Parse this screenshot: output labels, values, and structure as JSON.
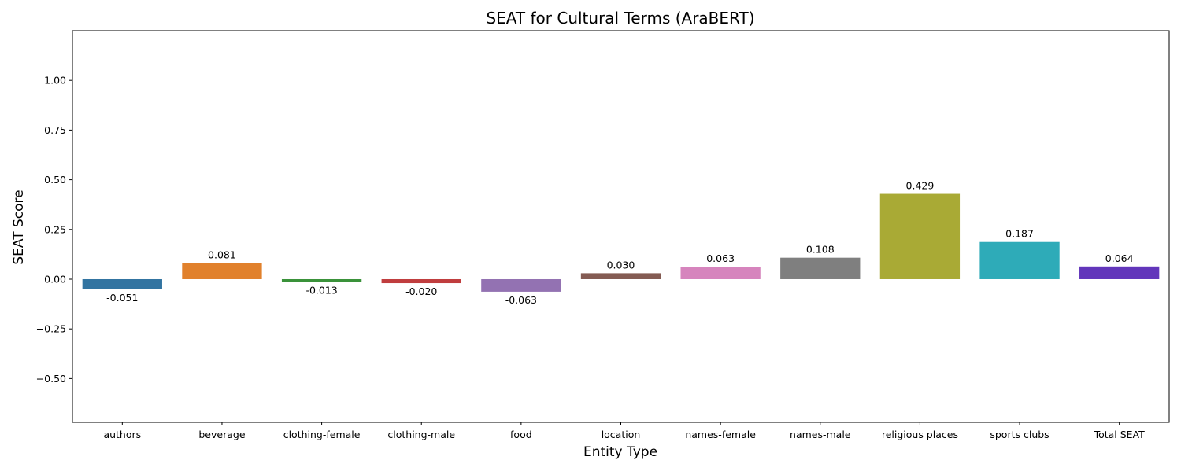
{
  "chart_data": {
    "type": "bar",
    "title": "SEAT for Cultural Terms (AraBERT)",
    "xlabel": "Entity Type",
    "ylabel": "SEAT Score",
    "ylim": [
      -0.72,
      1.25
    ],
    "yticks": [
      -0.5,
      -0.25,
      0.0,
      0.25,
      0.5,
      0.75,
      1.0
    ],
    "ytick_labels": [
      "−0.50",
      "−0.25",
      "0.00",
      "0.25",
      "0.50",
      "0.75",
      "1.00"
    ],
    "grid": false,
    "legend": "none",
    "categories": [
      "authors",
      "beverage",
      "clothing-female",
      "clothing-male",
      "food",
      "location",
      "names-female",
      "names-male",
      "religious places",
      "sports clubs",
      "Total SEAT"
    ],
    "values": [
      -0.051,
      0.081,
      -0.013,
      -0.02,
      -0.063,
      0.03,
      0.063,
      0.108,
      0.429,
      0.187,
      0.064
    ],
    "value_labels": [
      "-0.051",
      "0.081",
      "-0.013",
      "-0.020",
      "-0.063",
      "0.030",
      "0.063",
      "0.108",
      "0.429",
      "0.187",
      "0.064"
    ],
    "colors": [
      "#3274a1",
      "#e1812c",
      "#3a923a",
      "#c03d3e",
      "#9372b2",
      "#845b53",
      "#d684bd",
      "#7f7f7f",
      "#a9aa35",
      "#2eabb8",
      "#6236bb"
    ]
  }
}
